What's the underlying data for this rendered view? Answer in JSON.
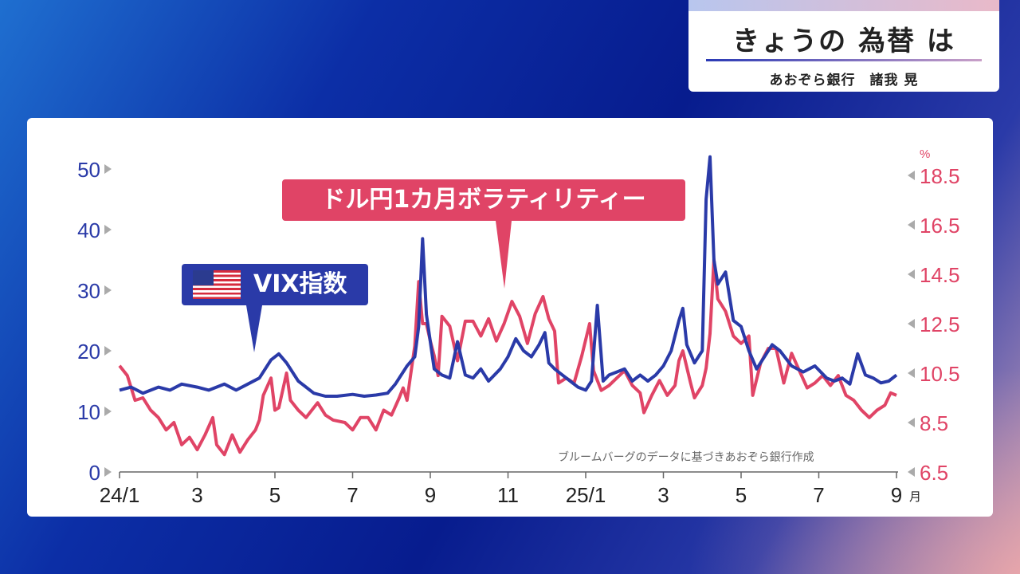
{
  "header": {
    "title": "きょうの 為替 は",
    "subtitle": "あおぞら銀行　諸我 晃"
  },
  "labels": {
    "vol_label": "ドル円1カ月ボラティリティー",
    "vix_label": "VIX指数",
    "source": "ブルームバーグのデータに基づきあおぞら銀行作成",
    "right_unit": "%"
  },
  "colors": {
    "vix": "#2a3aa8",
    "vol": "#e04466",
    "left_axis": "#2a3aa8",
    "right_axis": "#e04466"
  },
  "chart_data": {
    "type": "line",
    "x_tick_labels": [
      "24/1",
      "3",
      "5",
      "7",
      "9",
      "11",
      "25/1",
      "3",
      "5",
      "7",
      "9"
    ],
    "x_month_suffix": "月",
    "left_axis": {
      "ticks": [
        "0",
        "10",
        "20",
        "30",
        "40",
        "50"
      ],
      "ylim": [
        0,
        50
      ]
    },
    "right_axis": {
      "ticks": [
        "6.5",
        "8.5",
        "10.5",
        "12.5",
        "14.5",
        "16.5",
        "18.5"
      ],
      "ylim": [
        6.5,
        18.5
      ],
      "unit": "%"
    },
    "series": [
      {
        "name": "VIX指数",
        "axis": "left",
        "points": [
          [
            0,
            13.5
          ],
          [
            0.3,
            14
          ],
          [
            0.6,
            13
          ],
          [
            1,
            14
          ],
          [
            1.3,
            13.5
          ],
          [
            1.6,
            14.5
          ],
          [
            2,
            14
          ],
          [
            2.3,
            13.5
          ],
          [
            2.7,
            14.5
          ],
          [
            3,
            13.5
          ],
          [
            3.3,
            14.5
          ],
          [
            3.6,
            15.5
          ],
          [
            3.9,
            18.5
          ],
          [
            4.1,
            19.5
          ],
          [
            4.3,
            18
          ],
          [
            4.6,
            15
          ],
          [
            5,
            13
          ],
          [
            5.3,
            12.5
          ],
          [
            5.6,
            12.5
          ],
          [
            6,
            12.8
          ],
          [
            6.3,
            12.5
          ],
          [
            6.6,
            12.7
          ],
          [
            6.9,
            13
          ],
          [
            7.1,
            14.5
          ],
          [
            7.4,
            17.5
          ],
          [
            7.6,
            19
          ],
          [
            7.7,
            24
          ],
          [
            7.8,
            38.5
          ],
          [
            7.9,
            26
          ],
          [
            8.1,
            17
          ],
          [
            8.3,
            16
          ],
          [
            8.5,
            15.5
          ],
          [
            8.7,
            21.5
          ],
          [
            8.9,
            16
          ],
          [
            9.1,
            15.5
          ],
          [
            9.3,
            17
          ],
          [
            9.5,
            15
          ],
          [
            9.8,
            17
          ],
          [
            10,
            19
          ],
          [
            10.2,
            22
          ],
          [
            10.4,
            20
          ],
          [
            10.6,
            19
          ],
          [
            10.8,
            21
          ],
          [
            10.95,
            23
          ],
          [
            11.05,
            18
          ],
          [
            11.2,
            17
          ],
          [
            11.4,
            16
          ],
          [
            11.6,
            15
          ],
          [
            11.8,
            14
          ],
          [
            12,
            13.5
          ],
          [
            12.15,
            15
          ],
          [
            12.3,
            27.5
          ],
          [
            12.45,
            15
          ],
          [
            12.6,
            16
          ],
          [
            12.8,
            16.5
          ],
          [
            13,
            17
          ],
          [
            13.2,
            15
          ],
          [
            13.4,
            16
          ],
          [
            13.6,
            15
          ],
          [
            13.8,
            16
          ],
          [
            14,
            17.5
          ],
          [
            14.2,
            20
          ],
          [
            14.4,
            25
          ],
          [
            14.5,
            27
          ],
          [
            14.6,
            21
          ],
          [
            14.8,
            18
          ],
          [
            15,
            20
          ],
          [
            15.1,
            45
          ],
          [
            15.2,
            52
          ],
          [
            15.3,
            35
          ],
          [
            15.4,
            31
          ],
          [
            15.6,
            33
          ],
          [
            15.8,
            25
          ],
          [
            16,
            24
          ],
          [
            16.2,
            20
          ],
          [
            16.4,
            17
          ],
          [
            16.6,
            19
          ],
          [
            16.8,
            21
          ],
          [
            17,
            20
          ],
          [
            17.3,
            17.5
          ],
          [
            17.6,
            16.5
          ],
          [
            17.9,
            17.5
          ],
          [
            18.2,
            15.5
          ],
          [
            18.4,
            15
          ],
          [
            18.6,
            15.5
          ],
          [
            18.8,
            14.5
          ],
          [
            19,
            19.5
          ],
          [
            19.2,
            16
          ],
          [
            19.4,
            15.5
          ],
          [
            19.6,
            14.7
          ],
          [
            19.8,
            15
          ],
          [
            20,
            16
          ]
        ]
      },
      {
        "name": "ドル円1カ月ボラティリティー",
        "axis": "right",
        "points": [
          [
            0,
            10.8
          ],
          [
            0.2,
            10.4
          ],
          [
            0.4,
            9.4
          ],
          [
            0.6,
            9.5
          ],
          [
            0.8,
            9.0
          ],
          [
            1,
            8.7
          ],
          [
            1.2,
            8.2
          ],
          [
            1.4,
            8.5
          ],
          [
            1.6,
            7.6
          ],
          [
            1.8,
            7.9
          ],
          [
            2,
            7.4
          ],
          [
            2.2,
            8.0
          ],
          [
            2.4,
            8.7
          ],
          [
            2.5,
            7.6
          ],
          [
            2.7,
            7.2
          ],
          [
            2.9,
            8.0
          ],
          [
            3.1,
            7.3
          ],
          [
            3.3,
            7.8
          ],
          [
            3.5,
            8.2
          ],
          [
            3.6,
            8.6
          ],
          [
            3.7,
            9.6
          ],
          [
            3.9,
            10.3
          ],
          [
            4,
            9.0
          ],
          [
            4.1,
            9.1
          ],
          [
            4.3,
            10.5
          ],
          [
            4.4,
            9.4
          ],
          [
            4.6,
            9.0
          ],
          [
            4.8,
            8.7
          ],
          [
            5.1,
            9.3
          ],
          [
            5.3,
            8.8
          ],
          [
            5.5,
            8.6
          ],
          [
            5.8,
            8.5
          ],
          [
            6,
            8.2
          ],
          [
            6.2,
            8.7
          ],
          [
            6.4,
            8.7
          ],
          [
            6.6,
            8.2
          ],
          [
            6.8,
            9.0
          ],
          [
            7.0,
            8.8
          ],
          [
            7.2,
            9.5
          ],
          [
            7.3,
            9.9
          ],
          [
            7.4,
            9.4
          ],
          [
            7.5,
            10.5
          ],
          [
            7.6,
            11.6
          ],
          [
            7.7,
            14.2
          ],
          [
            7.8,
            12.5
          ],
          [
            7.9,
            12.5
          ],
          [
            8.0,
            11.8
          ],
          [
            8.1,
            11.2
          ],
          [
            8.2,
            10.4
          ],
          [
            8.3,
            12.8
          ],
          [
            8.5,
            12.4
          ],
          [
            8.7,
            11.0
          ],
          [
            8.9,
            12.6
          ],
          [
            9.1,
            12.6
          ],
          [
            9.3,
            12.0
          ],
          [
            9.5,
            12.7
          ],
          [
            9.7,
            11.8
          ],
          [
            9.9,
            12.5
          ],
          [
            10.1,
            13.4
          ],
          [
            10.3,
            12.8
          ],
          [
            10.5,
            11.7
          ],
          [
            10.7,
            12.9
          ],
          [
            10.9,
            13.6
          ],
          [
            11.05,
            12.7
          ],
          [
            11.2,
            12.2
          ],
          [
            11.3,
            10.1
          ],
          [
            11.5,
            10.3
          ],
          [
            11.7,
            10.1
          ],
          [
            11.9,
            11.2
          ],
          [
            12.1,
            12.5
          ],
          [
            12.2,
            10.6
          ],
          [
            12.4,
            9.8
          ],
          [
            12.6,
            10.0
          ],
          [
            12.8,
            10.3
          ],
          [
            13,
            10.6
          ],
          [
            13.2,
            10.0
          ],
          [
            13.4,
            9.7
          ],
          [
            13.5,
            8.9
          ],
          [
            13.7,
            9.6
          ],
          [
            13.9,
            10.2
          ],
          [
            14.1,
            9.6
          ],
          [
            14.3,
            10.0
          ],
          [
            14.4,
            11.0
          ],
          [
            14.5,
            11.4
          ],
          [
            14.7,
            10.1
          ],
          [
            14.8,
            9.5
          ],
          [
            15,
            10.0
          ],
          [
            15.1,
            10.7
          ],
          [
            15.2,
            12.1
          ],
          [
            15.3,
            15.1
          ],
          [
            15.4,
            13.5
          ],
          [
            15.6,
            13.0
          ],
          [
            15.8,
            12.0
          ],
          [
            16,
            11.7
          ],
          [
            16.2,
            12.0
          ],
          [
            16.3,
            9.6
          ],
          [
            16.5,
            10.9
          ],
          [
            16.7,
            11.5
          ],
          [
            16.9,
            11.5
          ],
          [
            17.1,
            10.1
          ],
          [
            17.3,
            11.3
          ],
          [
            17.5,
            10.6
          ],
          [
            17.7,
            9.9
          ],
          [
            17.9,
            10.1
          ],
          [
            18.1,
            10.4
          ],
          [
            18.3,
            10.0
          ],
          [
            18.5,
            10.4
          ],
          [
            18.7,
            9.6
          ],
          [
            18.9,
            9.4
          ],
          [
            19.1,
            9.0
          ],
          [
            19.3,
            8.7
          ],
          [
            19.5,
            9.0
          ],
          [
            19.7,
            9.2
          ],
          [
            19.85,
            9.7
          ],
          [
            20,
            9.6
          ]
        ]
      }
    ]
  }
}
